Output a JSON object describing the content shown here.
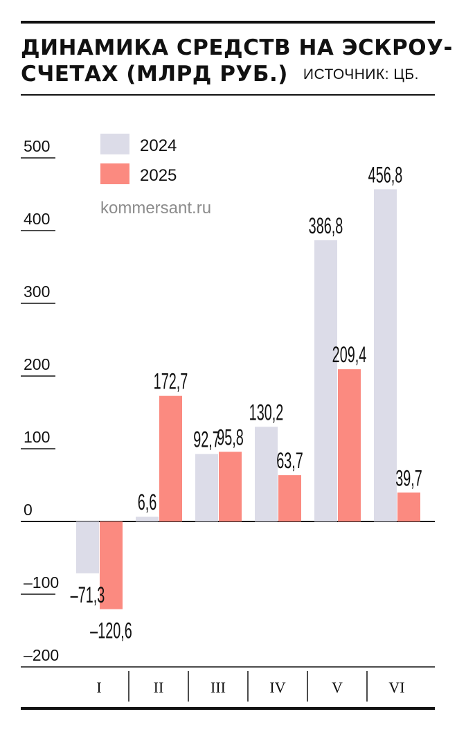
{
  "header": {
    "title_line1": "ДИНАМИКА СРЕДСТВ НА ЭСКРОУ-",
    "title_line2": "СЧЕТАХ (МЛРД РУБ.)",
    "source": "ИСТОЧНИК: ЦБ."
  },
  "watermark": "kommersant.ru",
  "colors": {
    "series_2024": "#dcdce8",
    "series_2025": "#fb8a80",
    "ink": "#111111"
  },
  "chart_data": {
    "type": "bar",
    "title": "ДИНАМИКА СРЕДСТВ НА ЭСКРОУ-СЧЕТАХ (МЛРД РУБ.)",
    "xlabel": "",
    "ylabel": "",
    "ylim": [
      -200,
      500
    ],
    "y_ticks": [
      500,
      400,
      300,
      200,
      100,
      0,
      -100,
      -200
    ],
    "y_tick_labels": [
      "500",
      "400",
      "300",
      "200",
      "100",
      "0",
      "–100",
      "–200"
    ],
    "categories": [
      "I",
      "II",
      "III",
      "IV",
      "V",
      "VI"
    ],
    "series": [
      {
        "name": "2024",
        "values": [
          -71.3,
          6.6,
          92.7,
          130.2,
          386.8,
          456.8
        ],
        "labels": [
          "–71,3",
          "6,6",
          "92,7",
          "130,2",
          "386,8",
          "456,8"
        ]
      },
      {
        "name": "2025",
        "values": [
          -120.6,
          172.7,
          95.8,
          63.7,
          209.4,
          39.7
        ],
        "labels": [
          "–120,6",
          "172,7",
          "95,8",
          "63,7",
          "209,4",
          "39,7"
        ]
      }
    ],
    "legend": [
      "2024",
      "2025"
    ],
    "legend_position": "top-left",
    "grid": false
  }
}
